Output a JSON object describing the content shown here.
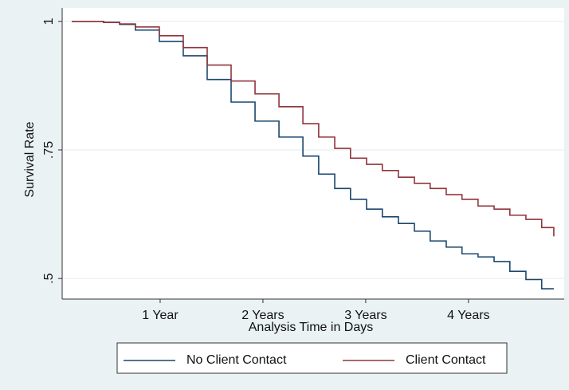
{
  "chart_data": {
    "type": "line",
    "step": true,
    "x_label": "Analysis Time in Days",
    "y_label": "Survival Rate",
    "x": [
      51,
      164,
      221,
      277,
      362,
      447,
      532,
      617,
      702,
      787,
      872,
      928,
      985,
      1041,
      1098,
      1154,
      1211,
      1268,
      1324,
      1381,
      1437,
      1494,
      1551,
      1607,
      1664,
      1720,
      1763
    ],
    "series": [
      {
        "name": "No Client Contact",
        "color": "#1a476f",
        "values": [
          1,
          0.998,
          0.994,
          0.983,
          0.961,
          0.933,
          0.887,
          0.843,
          0.806,
          0.775,
          0.738,
          0.703,
          0.675,
          0.654,
          0.635,
          0.62,
          0.607,
          0.592,
          0.573,
          0.561,
          0.548,
          0.542,
          0.533,
          0.514,
          0.498,
          0.48,
          0.48
        ]
      },
      {
        "name": "Client Contact",
        "color": "#90353b",
        "values": [
          1,
          0.998,
          0.995,
          0.989,
          0.972,
          0.949,
          0.915,
          0.884,
          0.859,
          0.834,
          0.801,
          0.775,
          0.753,
          0.734,
          0.722,
          0.71,
          0.697,
          0.685,
          0.675,
          0.663,
          0.654,
          0.641,
          0.635,
          0.623,
          0.615,
          0.599,
          0.582
        ]
      }
    ],
    "xlim": [
      17,
      1800
    ],
    "xticks": [
      {
        "value": 365,
        "label": "1 Year"
      },
      {
        "value": 730,
        "label": "2 Years"
      },
      {
        "value": 1095,
        "label": "3 Years"
      },
      {
        "value": 1460,
        "label": "4 Years"
      }
    ],
    "ylim": [
      0.46,
      1.026
    ],
    "yticks": [
      {
        "value": 0.5,
        "label": ".5"
      },
      {
        "value": 0.75,
        "label": ".75"
      },
      1
    ],
    "grid": true,
    "legend": "bottom"
  }
}
